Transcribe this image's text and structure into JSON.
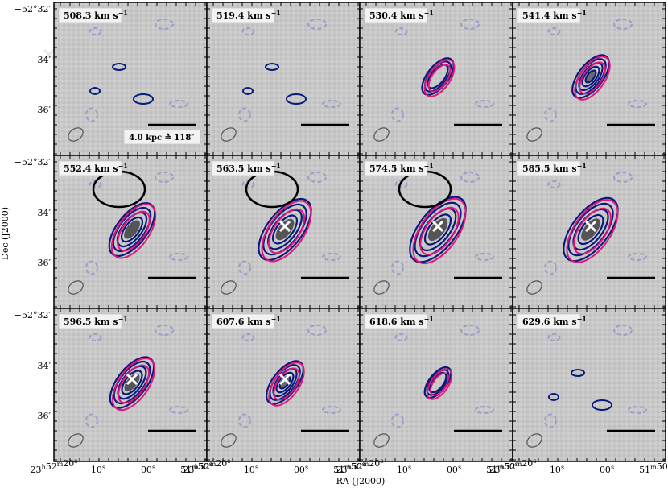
{
  "chart_data": {
    "type": "channel-map",
    "xlabel": "RA (J2000)",
    "ylabel": "Dec (J2000)",
    "ra_tick_labels": [
      "23h52m20s",
      "10s",
      "00s",
      "51m50s"
    ],
    "dec_tick_labels": [
      "−52°32′",
      "34′",
      "36′"
    ],
    "scale_bar_label": "4.0 kpc ≙ 118″",
    "panels": [
      {
        "velocity": "508.3",
        "unit": "km s−1",
        "cross": [
          10.5,
          -0.75
        ],
        "cross_color": "#e8e8e8",
        "emission": 0.0,
        "model": 0.0,
        "scalebar_label": true
      },
      {
        "velocity": "519.4",
        "unit": "km s−1",
        "cross": null,
        "emission": 0.0,
        "model": 0.0,
        "scalebar_label": false
      },
      {
        "velocity": "530.4",
        "unit": "km s−1",
        "cross": null,
        "emission": 0.3,
        "model": 0.35,
        "scalebar_label": false
      },
      {
        "velocity": "541.4",
        "unit": "km s−1",
        "cross": null,
        "emission": 0.45,
        "model": 0.5,
        "scalebar_label": false
      },
      {
        "velocity": "552.4",
        "unit": "km s−1",
        "cross": null,
        "emission": 0.7,
        "model": 0.75,
        "beam_ring": true,
        "scalebar_label": false
      },
      {
        "velocity": "563.5",
        "unit": "km s−1",
        "cross": [
          0,
          0
        ],
        "cross_color": "#ffffff",
        "emission": 0.9,
        "model": 0.9,
        "beam_ring": true,
        "scalebar_label": false
      },
      {
        "velocity": "574.5",
        "unit": "km s−1",
        "cross": [
          0,
          0
        ],
        "cross_color": "#ffffff",
        "emission": 1.0,
        "model": 1.0,
        "beam_ring": true,
        "scalebar_label": false
      },
      {
        "velocity": "585.5",
        "unit": "km s−1",
        "cross": [
          0,
          0
        ],
        "cross_color": "#ffffff",
        "emission": 0.95,
        "model": 0.95,
        "scalebar_label": false
      },
      {
        "velocity": "596.5",
        "unit": "km s−1",
        "cross": [
          0,
          0
        ],
        "cross_color": "#ffffff",
        "emission": 0.65,
        "model": 0.7,
        "scalebar_label": false
      },
      {
        "velocity": "607.6",
        "unit": "km s−1",
        "cross": [
          0,
          0
        ],
        "cross_color": "#ffffff",
        "emission": 0.45,
        "model": 0.5,
        "scalebar_label": false
      },
      {
        "velocity": "618.6",
        "unit": "km s−1",
        "cross": null,
        "emission": 0.15,
        "model": 0.2,
        "scalebar_label": false
      },
      {
        "velocity": "629.6",
        "unit": "km s−1",
        "cross": null,
        "emission": 0.0,
        "model": 0.0,
        "scalebar_label": false
      }
    ],
    "colors": {
      "background": "#c8c8c8",
      "observed_contour": "#0a1a7a",
      "negative_contour": "#9a9ec8",
      "model_contour": "#e0167a",
      "beam_ring": "#000000",
      "core": "#6a6a6a"
    }
  }
}
